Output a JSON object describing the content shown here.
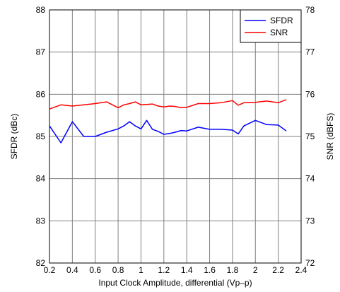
{
  "chart_data": {
    "type": "line",
    "title": "",
    "xlabel": "Input Clock Amplitude, differential (Vp–p)",
    "ylabel_left": "SFDR (dBc)",
    "ylabel_right": "SNR (dBFS)",
    "xlim": [
      0.2,
      2.4
    ],
    "ylim_left": [
      82,
      88
    ],
    "ylim_right": [
      72,
      78
    ],
    "xticks": [
      "0.2",
      "0.4",
      "0.6",
      "0.8",
      "1",
      "1.2",
      "1.4",
      "1.6",
      "1.8",
      "2",
      "2.2",
      "2.4"
    ],
    "yticks_left": [
      "82",
      "83",
      "84",
      "85",
      "86",
      "87",
      "88"
    ],
    "yticks_right": [
      "72",
      "73",
      "74",
      "75",
      "76",
      "77",
      "78"
    ],
    "grid": true,
    "legend_position": "top-right",
    "series": [
      {
        "name": "SFDR",
        "axis": "left",
        "color": "#0000ff",
        "x": [
          0.2,
          0.3,
          0.4,
          0.5,
          0.6,
          0.7,
          0.8,
          0.85,
          0.9,
          0.95,
          1.0,
          1.05,
          1.1,
          1.15,
          1.2,
          1.25,
          1.3,
          1.35,
          1.4,
          1.5,
          1.6,
          1.7,
          1.8,
          1.85,
          1.9,
          2.0,
          2.1,
          2.2,
          2.27
        ],
        "values": [
          85.25,
          84.85,
          85.35,
          85.0,
          85.0,
          85.1,
          85.18,
          85.25,
          85.35,
          85.25,
          85.18,
          85.38,
          85.17,
          85.12,
          85.05,
          85.07,
          85.1,
          85.14,
          85.13,
          85.22,
          85.17,
          85.17,
          85.15,
          85.06,
          85.25,
          85.38,
          85.28,
          85.27,
          85.13
        ]
      },
      {
        "name": "SNR",
        "axis": "right",
        "color": "#ff0000",
        "x": [
          0.2,
          0.3,
          0.4,
          0.5,
          0.6,
          0.7,
          0.8,
          0.85,
          0.9,
          0.95,
          1.0,
          1.05,
          1.1,
          1.15,
          1.2,
          1.25,
          1.3,
          1.35,
          1.4,
          1.5,
          1.6,
          1.7,
          1.8,
          1.85,
          1.9,
          2.0,
          2.1,
          2.2,
          2.27
        ],
        "values": [
          75.65,
          75.75,
          75.72,
          75.75,
          75.78,
          75.82,
          75.68,
          75.75,
          75.78,
          75.82,
          75.75,
          75.76,
          75.77,
          75.72,
          75.7,
          75.72,
          75.71,
          75.68,
          75.69,
          75.78,
          75.78,
          75.8,
          75.85,
          75.74,
          75.8,
          75.81,
          75.84,
          75.8,
          75.87
        ]
      }
    ]
  }
}
